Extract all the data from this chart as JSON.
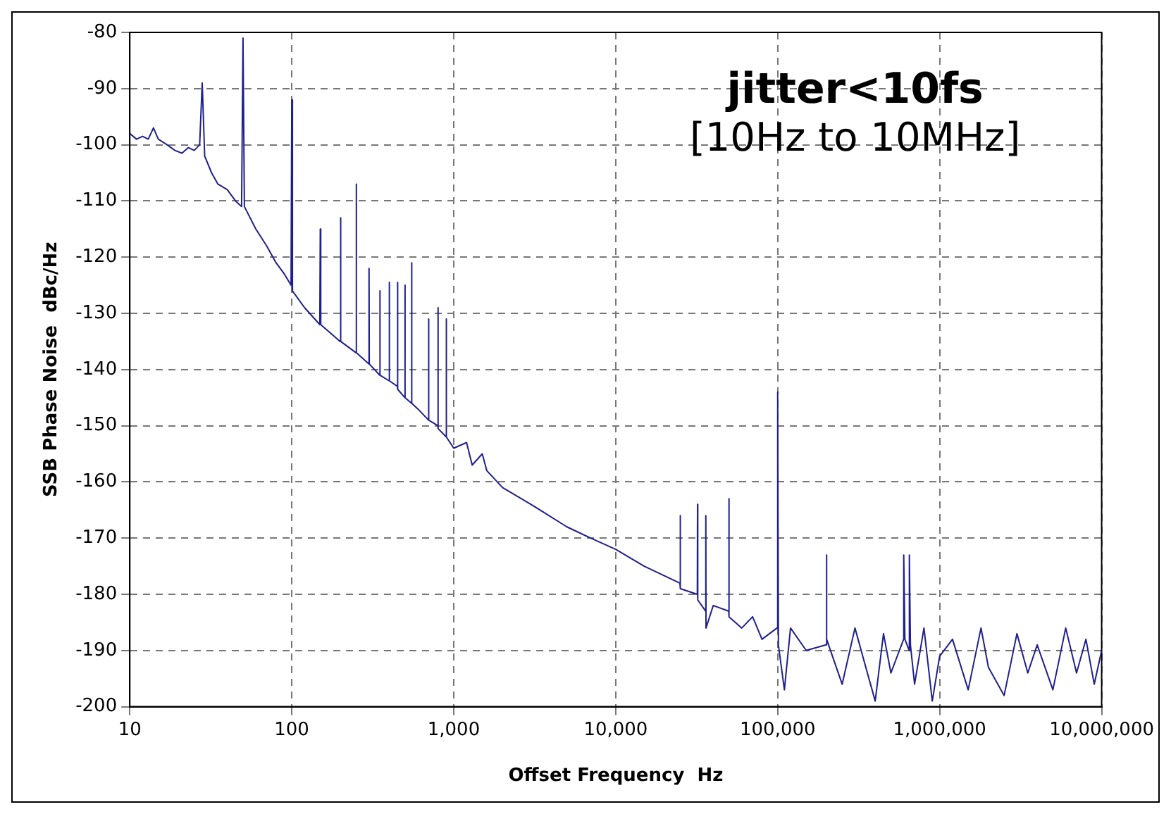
{
  "chart_data": {
    "type": "line",
    "xlabel": "Offset Frequency  Hz",
    "ylabel": "SSB Phase Noise  dBc/Hz",
    "annotations": [
      "jitter<10fs",
      "[10Hz to 10MHz]"
    ],
    "log": "x",
    "grid": true,
    "marker": "none",
    "line_style": "solid",
    "legend": false,
    "xlim": [
      10,
      10000000
    ],
    "xticks": [
      10,
      100,
      {
        "value": 1000,
        "label": "1,000"
      },
      {
        "value": 10000,
        "label": "10,000"
      },
      {
        "value": 100000,
        "label": "100,000"
      },
      {
        "value": 1000000,
        "label": "1,000,000"
      },
      {
        "value": 10000000,
        "label": "10,000,000"
      }
    ],
    "ylim": [
      -200,
      -80
    ],
    "yticks": [
      -200,
      -190,
      -180,
      -170,
      -160,
      -150,
      -140,
      -130,
      -120,
      -110,
      -100,
      -90,
      -80
    ],
    "series": [
      {
        "color": "#1f1f8f",
        "x": [
          10,
          11,
          12,
          13,
          14,
          15,
          17,
          19,
          21,
          23,
          25,
          27,
          28,
          29,
          32,
          35,
          40,
          45,
          49,
          50,
          51,
          60,
          70,
          80,
          90,
          99,
          100,
          101,
          120,
          149,
          150,
          151,
          199,
          200,
          201,
          249,
          250,
          251,
          299,
          300,
          301,
          349,
          350,
          351,
          399,
          400,
          401,
          449,
          450,
          451,
          499,
          500,
          501,
          549,
          550,
          551,
          600,
          699,
          700,
          701,
          799,
          800,
          801,
          899,
          900,
          901,
          1000,
          1200,
          1300,
          1500,
          1600,
          2000,
          3000,
          5000,
          7000,
          10000,
          15000,
          24900,
          25000,
          25100,
          31900,
          32000,
          32100,
          35900,
          36000,
          36100,
          40000,
          49900,
          50000,
          50100,
          60000,
          70000,
          80000,
          99000,
          100000,
          101000,
          110000,
          120000,
          150000,
          199000,
          200000,
          201000,
          250000,
          300000,
          350000,
          400000,
          450000,
          500000,
          599000,
          600000,
          610000,
          649000,
          650000,
          660000,
          700000,
          800000,
          900000,
          1000000,
          1200000,
          1500000,
          1800000,
          2000000,
          2500000,
          3000000,
          3500000,
          4000000,
          5000000,
          6000000,
          7000000,
          8000000,
          9000000,
          10000000
        ],
        "values": [
          -98,
          -99,
          -98.5,
          -99,
          -97,
          -99,
          -100,
          -101,
          -101.5,
          -100.5,
          -101,
          -100,
          -89,
          -102,
          -105,
          -107,
          -108,
          -110,
          -111,
          -81,
          -111,
          -115,
          -118,
          -121,
          -123,
          -125,
          -92,
          -126,
          -129,
          -132,
          -115,
          -132,
          -135,
          -113,
          -135,
          -137,
          -107,
          -137,
          -139,
          -122,
          -139,
          -141,
          -126,
          -141,
          -142,
          -124.5,
          -142,
          -143,
          -124.5,
          -143.5,
          -145,
          -125,
          -145,
          -146,
          -121,
          -146,
          -147,
          -149,
          -131,
          -149,
          -150,
          -129,
          -150.5,
          -152,
          -131,
          -152,
          -154,
          -153,
          -157,
          -155,
          -158,
          -161,
          -164,
          -168,
          -170,
          -172,
          -175,
          -178,
          -166,
          -179,
          -180,
          -164,
          -181,
          -183,
          -166,
          -186,
          -182,
          -183,
          -163,
          -184,
          -186,
          -184,
          -188,
          -186,
          -144,
          -189,
          -197,
          -186,
          -190,
          -189,
          -173,
          -188,
          -196,
          -186,
          -193,
          -199,
          -187,
          -194,
          -188,
          -173,
          -188,
          -190,
          -173,
          -189,
          -196,
          -186,
          -199,
          -191,
          -188,
          -197,
          -186,
          -193,
          -198,
          -187,
          -194,
          -189,
          -197,
          -186,
          -194,
          -188,
          -196,
          -190
        ]
      }
    ]
  }
}
